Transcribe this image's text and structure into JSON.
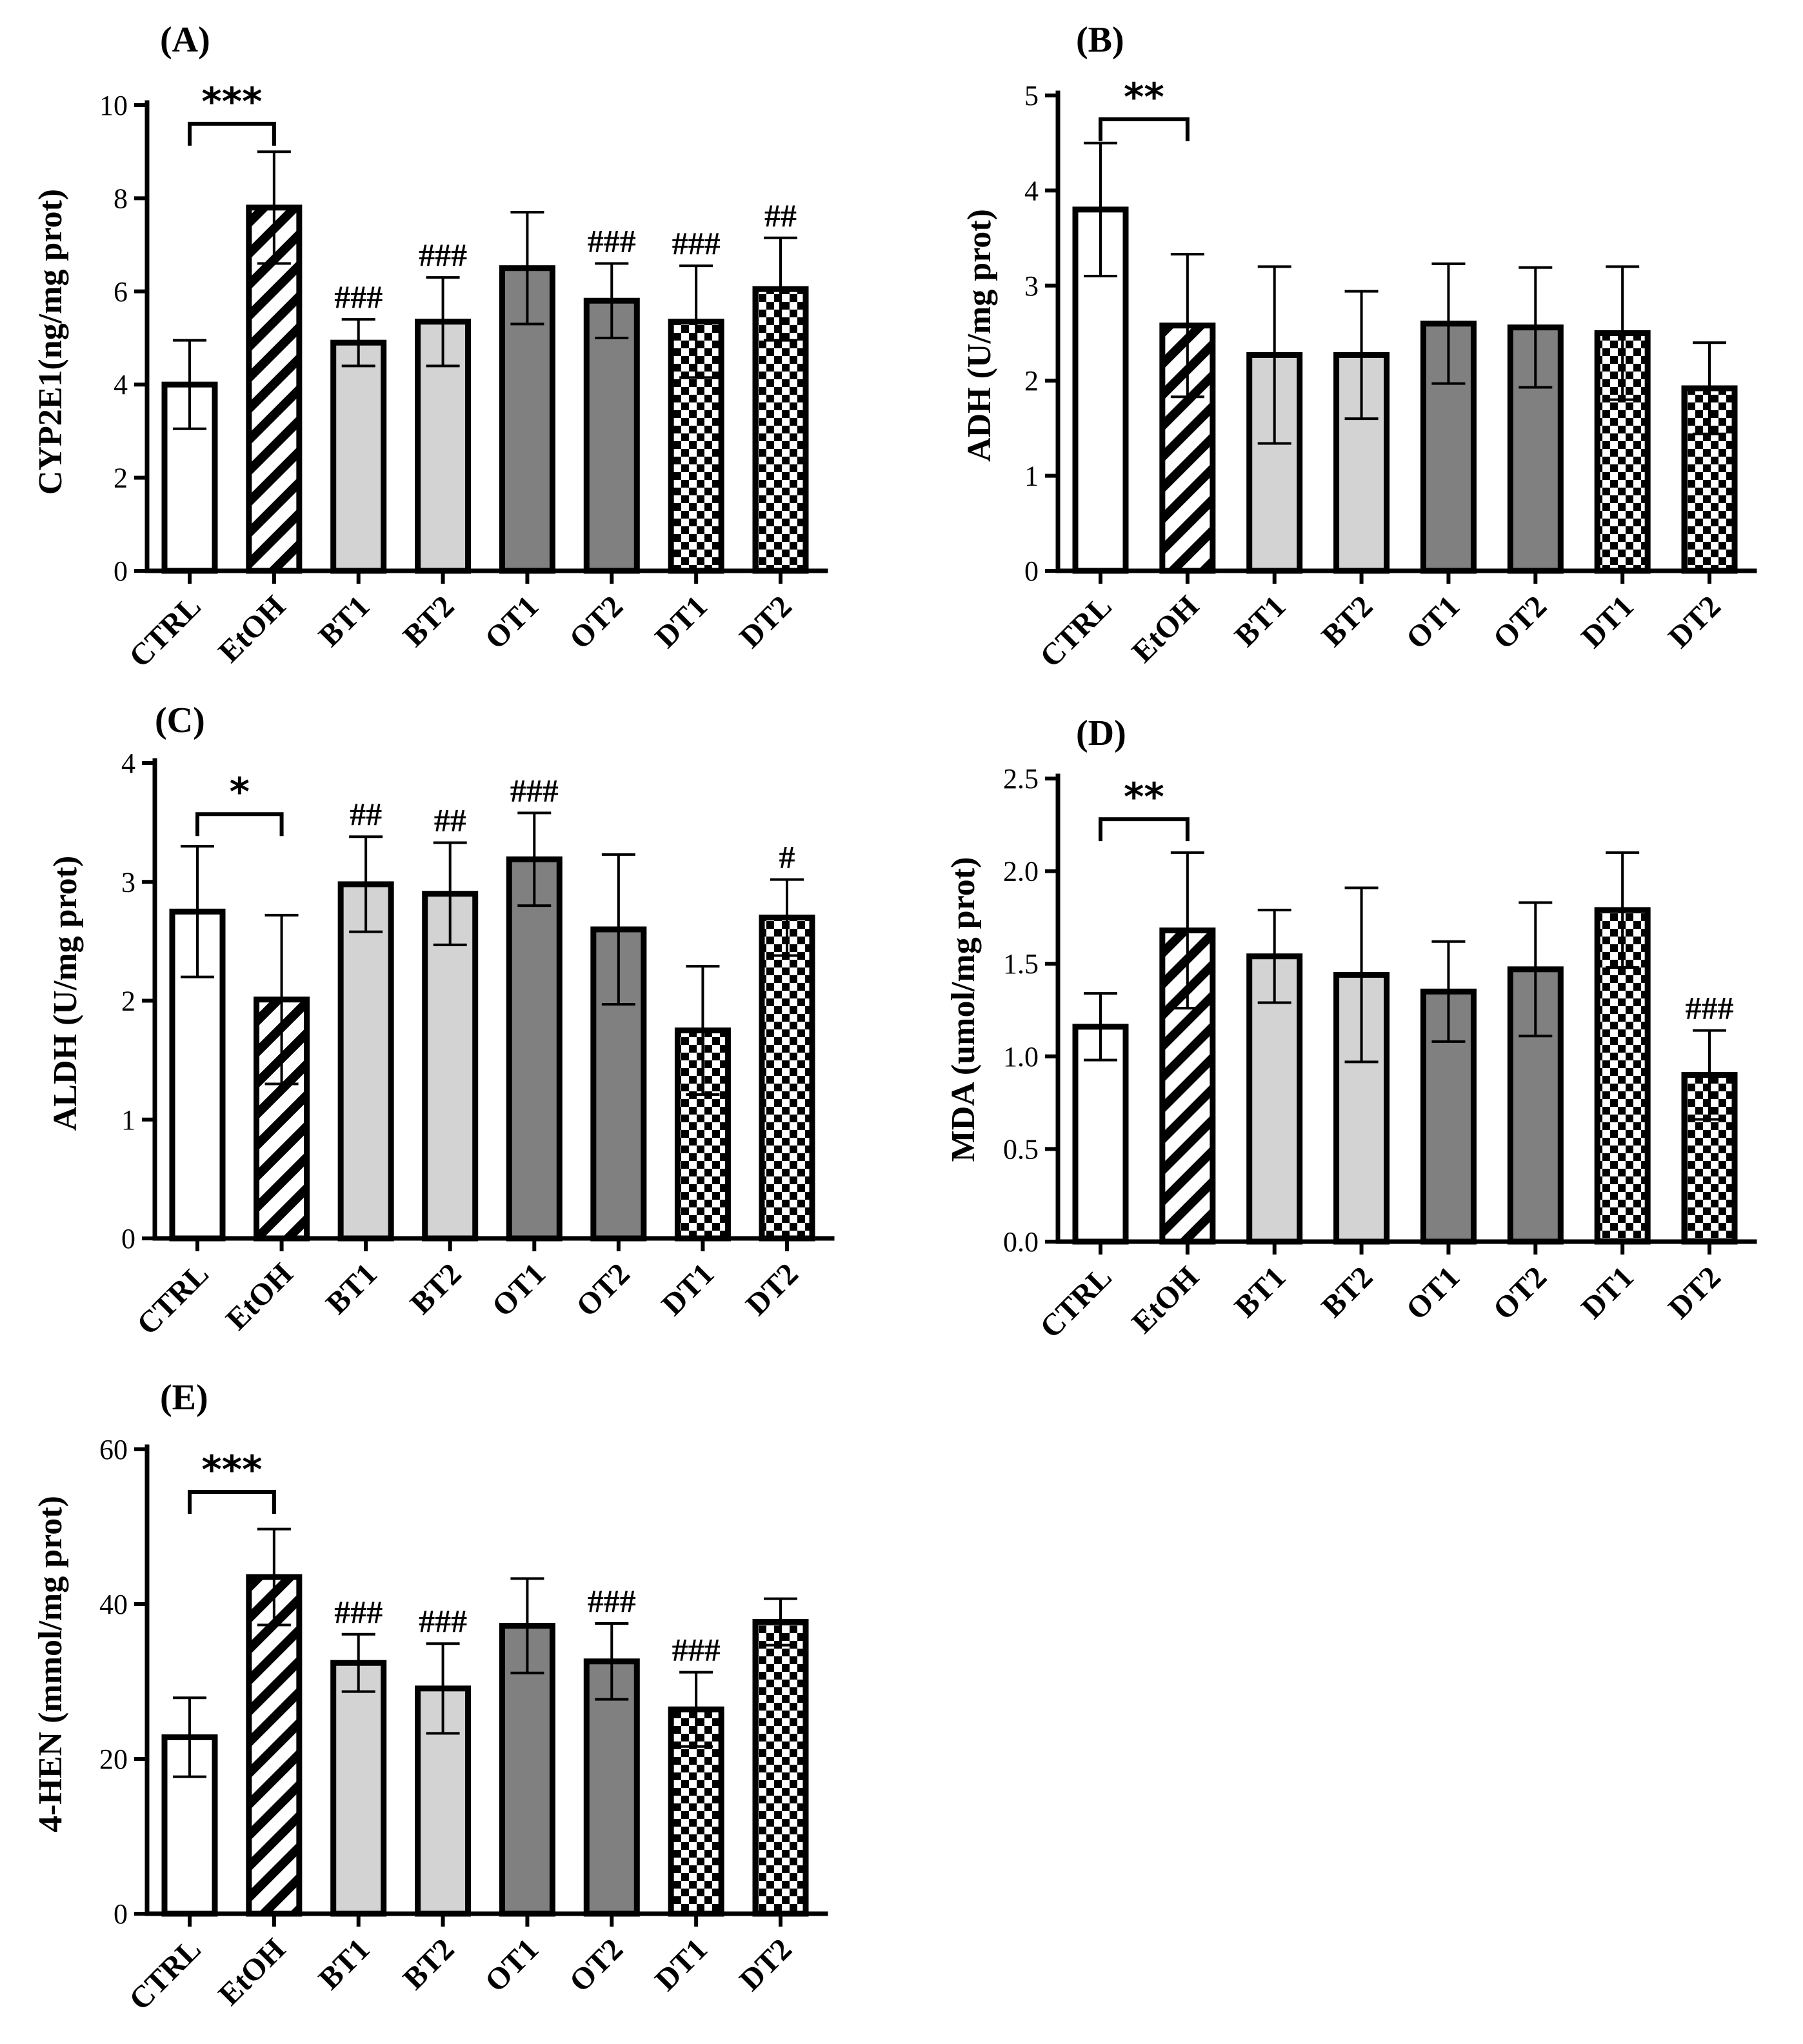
{
  "chart_data": [
    {
      "id": "A",
      "type": "bar",
      "panel_label": "(A)",
      "ylabel": "CYP2E1(ng/mg prot)",
      "categories": [
        "CTRL",
        "EtOH",
        "BT1",
        "BT2",
        "OT1",
        "OT2",
        "DT1",
        "DT2"
      ],
      "values": [
        4.0,
        7.8,
        4.9,
        5.35,
        6.5,
        5.8,
        5.35,
        6.05
      ],
      "errors": [
        0.95,
        1.2,
        0.5,
        0.95,
        1.2,
        0.8,
        1.2,
        1.1
      ],
      "yticks": [
        0,
        2,
        4,
        6,
        8,
        10
      ],
      "tick_labels": [
        "0",
        "2",
        "4",
        "6",
        "8",
        "10"
      ],
      "ylim": [
        0,
        10
      ],
      "significance": {
        "label": "***",
        "from": 0,
        "to": 1,
        "at": 9.6
      },
      "hash_labels": [
        "",
        "",
        "###",
        "###",
        "",
        "###",
        "###",
        "##"
      ]
    },
    {
      "id": "B",
      "type": "bar",
      "panel_label": "(B)",
      "ylabel": "ADH (U/mg prot)",
      "categories": [
        "CTRL",
        "EtOH",
        "BT1",
        "BT2",
        "OT1",
        "OT2",
        "DT1",
        "DT2"
      ],
      "values": [
        3.8,
        2.58,
        2.27,
        2.27,
        2.6,
        2.56,
        2.5,
        1.92
      ],
      "errors": [
        0.7,
        0.75,
        0.93,
        0.67,
        0.63,
        0.63,
        0.7,
        0.48
      ],
      "yticks": [
        0,
        1,
        2,
        3,
        4,
        5
      ],
      "tick_labels": [
        "0",
        "1",
        "2",
        "3",
        "4",
        "5"
      ],
      "ylim": [
        0,
        5
      ],
      "significance": {
        "label": "**",
        "from": 0,
        "to": 1,
        "at": 4.75
      },
      "hash_labels": [
        "",
        "",
        "",
        "",
        "",
        "",
        "",
        ""
      ]
    },
    {
      "id": "C",
      "type": "bar",
      "panel_label": "(C)",
      "ylabel": "ALDH (U/mg prot)",
      "categories": [
        "CTRL",
        "EtOH",
        "BT1",
        "BT2",
        "OT1",
        "OT2",
        "DT1",
        "DT2"
      ],
      "values": [
        2.75,
        2.01,
        2.98,
        2.9,
        3.19,
        2.6,
        1.75,
        2.7
      ],
      "errors": [
        0.55,
        0.71,
        0.4,
        0.43,
        0.39,
        0.63,
        0.54,
        0.32
      ],
      "yticks": [
        0,
        1,
        2,
        3,
        4
      ],
      "tick_labels": [
        "0",
        "1",
        "2",
        "3",
        "4"
      ],
      "ylim": [
        0,
        4
      ],
      "significance": {
        "label": "*",
        "from": 0,
        "to": 1,
        "at": 3.57
      },
      "hash_labels": [
        "",
        "",
        "##",
        "##",
        "###",
        "",
        "",
        "#"
      ]
    },
    {
      "id": "D",
      "type": "bar",
      "panel_label": "(D)",
      "ylabel": "MDA (umol/mg prot)",
      "categories": [
        "CTRL",
        "EtOH",
        "BT1",
        "BT2",
        "OT1",
        "OT2",
        "DT1",
        "DT2"
      ],
      "values": [
        1.16,
        1.68,
        1.54,
        1.44,
        1.35,
        1.47,
        1.79,
        0.9
      ],
      "errors": [
        0.18,
        0.42,
        0.25,
        0.47,
        0.27,
        0.36,
        0.31,
        0.24
      ],
      "yticks": [
        0,
        0.5,
        1.0,
        1.5,
        2.0,
        2.5
      ],
      "tick_labels": [
        "0.0",
        "0.5",
        "1.0",
        "1.5",
        "2.0",
        "2.5"
      ],
      "ylim": [
        0,
        2.5
      ],
      "significance": {
        "label": "**",
        "from": 0,
        "to": 1,
        "at": 2.28
      },
      "hash_labels": [
        "",
        "",
        "",
        "",
        "",
        "",
        "",
        "###"
      ]
    },
    {
      "id": "E",
      "type": "bar",
      "panel_label": "(E)",
      "ylabel": "4-HEN (mmol/mg prot)",
      "categories": [
        "CTRL",
        "EtOH",
        "BT1",
        "BT2",
        "OT1",
        "OT2",
        "DT1",
        "DT2"
      ],
      "values": [
        22.8,
        43.5,
        32.4,
        29.1,
        37.2,
        32.6,
        26.4,
        37.7
      ],
      "errors": [
        5.1,
        6.2,
        3.7,
        5.8,
        6.1,
        4.9,
        4.8,
        3.0
      ],
      "yticks": [
        0,
        20,
        40,
        60
      ],
      "tick_labels": [
        "0",
        "20",
        "40",
        "60"
      ],
      "ylim": [
        0,
        60
      ],
      "significance": {
        "label": "***",
        "from": 0,
        "to": 1,
        "at": 54.5
      },
      "hash_labels": [
        "",
        "",
        "###",
        "###",
        "",
        "###",
        "###",
        ""
      ]
    }
  ],
  "styles": {
    "bar_fills": [
      "white",
      "hatch",
      "#d3d3d3",
      "#d3d3d3",
      "#808080",
      "#808080",
      "checker",
      "checker"
    ],
    "light_gray": "#d3d3d3",
    "dark_gray": "#808080",
    "ink": "#000000"
  }
}
